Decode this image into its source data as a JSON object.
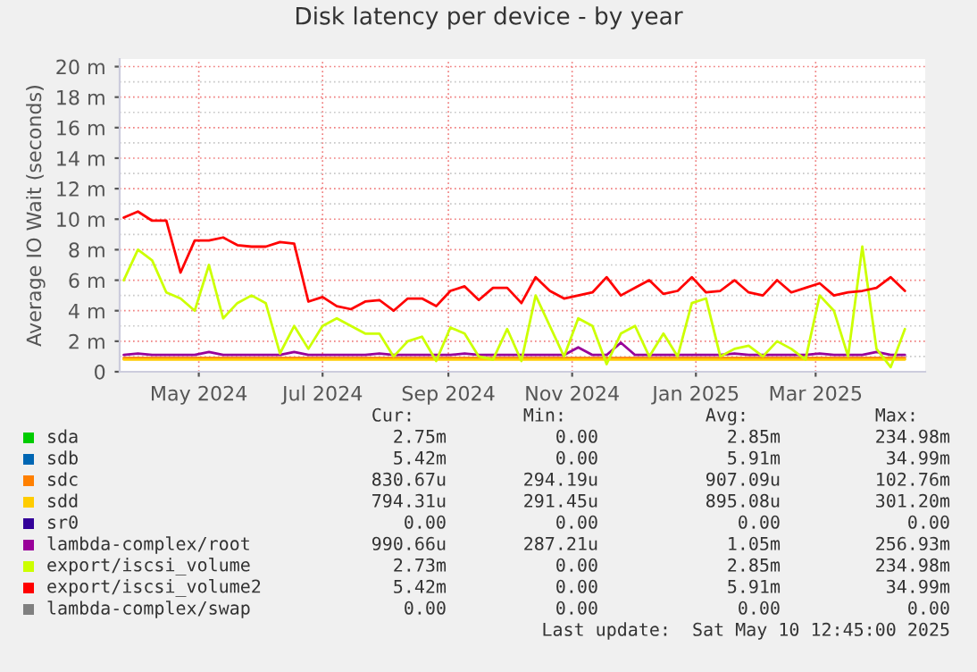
{
  "chart_data": {
    "type": "line",
    "title": "Disk latency per device - by year",
    "ylabel": "Average IO Wait (seconds)",
    "x": [
      "2024-03-25",
      "2024-04-01",
      "2024-04-08",
      "2024-04-15",
      "2024-04-22",
      "2024-04-29",
      "2024-05-06",
      "2024-05-13",
      "2024-05-20",
      "2024-05-27",
      "2024-06-03",
      "2024-06-10",
      "2024-06-17",
      "2024-06-24",
      "2024-07-01",
      "2024-07-08",
      "2024-07-15",
      "2024-07-22",
      "2024-07-29",
      "2024-08-05",
      "2024-08-12",
      "2024-08-19",
      "2024-08-26",
      "2024-09-02",
      "2024-09-09",
      "2024-09-16",
      "2024-09-23",
      "2024-09-30",
      "2024-10-07",
      "2024-10-14",
      "2024-10-21",
      "2024-10-28",
      "2024-11-04",
      "2024-11-11",
      "2024-11-18",
      "2024-11-25",
      "2024-12-02",
      "2024-12-09",
      "2024-12-16",
      "2024-12-23",
      "2024-12-30",
      "2025-01-06",
      "2025-01-13",
      "2025-01-20",
      "2025-01-27",
      "2025-02-03",
      "2025-02-10",
      "2025-02-17",
      "2025-02-24",
      "2025-03-03",
      "2025-03-10",
      "2025-03-17",
      "2025-03-24",
      "2025-03-31",
      "2025-04-07",
      "2025-04-14"
    ],
    "xlim": [
      "2024-03-23",
      "2025-04-24"
    ],
    "xticks": [
      {
        "value": "2024-05-01",
        "label": "May 2024"
      },
      {
        "value": "2024-07-01",
        "label": "Jul 2024"
      },
      {
        "value": "2024-09-01",
        "label": "Sep 2024"
      },
      {
        "value": "2024-11-01",
        "label": "Nov 2024"
      },
      {
        "value": "2025-01-01",
        "label": "Jan 2025"
      },
      {
        "value": "2025-03-01",
        "label": "Mar 2025"
      }
    ],
    "ylim": [
      0,
      20.5
    ],
    "yticks": [
      0,
      {
        "value": 2,
        "label": "2 m"
      },
      {
        "value": 4,
        "label": "4 m"
      },
      {
        "value": 6,
        "label": "6 m"
      },
      {
        "value": 8,
        "label": "8 m"
      },
      {
        "value": 10,
        "label": "10 m"
      },
      {
        "value": 12,
        "label": "12 m"
      },
      {
        "value": 14,
        "label": "14 m"
      },
      {
        "value": 16,
        "label": "16 m"
      },
      {
        "value": 18,
        "label": "18 m"
      },
      {
        "value": 20,
        "label": "20 m"
      }
    ],
    "grid": true,
    "legend": "bottom",
    "series": [
      {
        "name": "sda",
        "color": "#00cc00",
        "values": [
          null,
          null,
          null,
          null,
          null,
          null,
          null,
          null,
          null,
          null,
          null,
          null,
          null,
          null,
          null,
          null,
          null,
          null,
          null,
          null,
          null,
          null,
          null,
          null,
          null,
          null,
          null,
          null,
          null,
          null,
          null,
          null,
          null,
          null,
          null,
          null,
          null,
          null,
          null,
          null,
          null,
          null,
          null,
          null,
          null,
          null,
          null,
          null,
          null,
          null,
          null,
          null,
          null,
          null,
          null,
          null
        ]
      },
      {
        "name": "sdb",
        "color": "#0066b3",
        "values": [
          null,
          null,
          null,
          null,
          null,
          null,
          null,
          null,
          null,
          null,
          null,
          null,
          null,
          null,
          null,
          null,
          null,
          null,
          null,
          null,
          null,
          null,
          null,
          null,
          null,
          null,
          null,
          null,
          null,
          null,
          null,
          null,
          null,
          null,
          null,
          null,
          null,
          null,
          null,
          null,
          null,
          null,
          null,
          null,
          null,
          null,
          null,
          null,
          null,
          null,
          null,
          null,
          null,
          null,
          null,
          null
        ]
      },
      {
        "name": "sdc",
        "color": "#ff8000",
        "values": [
          0.9,
          0.9,
          0.9,
          0.9,
          0.9,
          0.9,
          0.9,
          0.9,
          0.9,
          0.9,
          0.9,
          0.9,
          0.9,
          0.9,
          0.9,
          0.9,
          0.9,
          0.9,
          0.9,
          0.9,
          0.9,
          0.9,
          0.9,
          0.9,
          0.9,
          0.9,
          0.9,
          0.9,
          0.9,
          0.9,
          0.9,
          0.9,
          0.9,
          0.9,
          0.9,
          0.9,
          0.9,
          0.9,
          0.9,
          0.9,
          0.9,
          0.9,
          0.9,
          0.9,
          0.9,
          0.9,
          0.9,
          0.9,
          0.9,
          0.9,
          0.9,
          0.9,
          0.9,
          0.9,
          0.9,
          0.9
        ]
      },
      {
        "name": "sdd",
        "color": "#ffcc00",
        "values": [
          0.8,
          0.8,
          0.8,
          0.8,
          0.8,
          0.8,
          0.8,
          0.8,
          0.8,
          0.8,
          0.8,
          0.8,
          0.8,
          0.8,
          0.8,
          0.8,
          0.8,
          0.8,
          0.8,
          0.8,
          0.8,
          0.8,
          0.8,
          0.8,
          0.8,
          0.8,
          0.8,
          0.8,
          0.8,
          0.8,
          0.8,
          0.8,
          0.8,
          0.8,
          0.8,
          0.8,
          0.8,
          0.8,
          0.8,
          0.8,
          0.8,
          0.8,
          0.8,
          0.8,
          0.8,
          0.8,
          0.8,
          0.8,
          0.8,
          0.8,
          0.8,
          0.8,
          0.8,
          0.8,
          0.8,
          0.8
        ]
      },
      {
        "name": "sr0",
        "color": "#330099",
        "values": [
          null,
          null,
          null,
          null,
          null,
          null,
          null,
          null,
          null,
          null,
          null,
          null,
          null,
          null,
          null,
          null,
          null,
          null,
          null,
          null,
          null,
          null,
          null,
          null,
          null,
          null,
          null,
          null,
          null,
          null,
          null,
          null,
          null,
          null,
          null,
          null,
          null,
          null,
          null,
          null,
          null,
          null,
          null,
          null,
          null,
          null,
          null,
          null,
          null,
          null,
          null,
          null,
          null,
          null,
          null,
          null
        ]
      },
      {
        "name": "lambda-complex/root",
        "color": "#990099",
        "values": [
          1.1,
          1.2,
          1.1,
          1.1,
          1.1,
          1.1,
          1.3,
          1.1,
          1.1,
          1.1,
          1.1,
          1.1,
          1.3,
          1.1,
          1.1,
          1.1,
          1.1,
          1.1,
          1.2,
          1.1,
          1.1,
          1.1,
          1.1,
          1.1,
          1.2,
          1.1,
          1.1,
          1.1,
          1.1,
          1.1,
          1.1,
          1.1,
          1.6,
          1.1,
          1.1,
          1.9,
          1.1,
          1.1,
          1.1,
          1.1,
          1.1,
          1.1,
          1.1,
          1.2,
          1.1,
          1.1,
          1.1,
          1.1,
          1.1,
          1.2,
          1.1,
          1.1,
          1.1,
          1.3,
          1.1,
          1.1
        ]
      },
      {
        "name": "export/iscsi_volume",
        "color": "#ccff00",
        "values": [
          6.0,
          8.0,
          7.3,
          5.2,
          4.8,
          4.0,
          7.0,
          3.5,
          4.5,
          5.0,
          4.5,
          1.2,
          3.0,
          1.5,
          3.0,
          3.5,
          3.0,
          2.5,
          2.5,
          1.0,
          2.0,
          2.3,
          0.7,
          2.9,
          2.5,
          1.0,
          0.8,
          2.8,
          0.7,
          5.0,
          3.0,
          1.0,
          3.5,
          3.0,
          0.5,
          2.5,
          3.0,
          1.0,
          2.5,
          1.0,
          4.5,
          4.8,
          1.0,
          1.5,
          1.7,
          1.0,
          2.0,
          1.5,
          0.8,
          5.0,
          4.0,
          1.0,
          8.2,
          1.5,
          0.3,
          2.8
        ]
      },
      {
        "name": "export/iscsi_volume2",
        "color": "#ff0000",
        "values": [
          10.1,
          10.5,
          9.9,
          9.9,
          6.5,
          8.6,
          8.6,
          8.8,
          8.3,
          8.2,
          8.2,
          8.5,
          8.4,
          4.6,
          4.9,
          4.3,
          4.1,
          4.6,
          4.7,
          4.0,
          4.8,
          4.8,
          4.3,
          5.3,
          5.6,
          4.7,
          5.5,
          5.5,
          4.5,
          6.2,
          5.3,
          4.8,
          5.0,
          5.2,
          6.2,
          5.0,
          5.5,
          6.0,
          5.1,
          5.3,
          6.2,
          5.2,
          5.3,
          6.0,
          5.2,
          5.0,
          6.0,
          5.2,
          5.5,
          5.8,
          5.0,
          5.2,
          5.3,
          5.5,
          6.2,
          5.3
        ]
      },
      {
        "name": "lambda-complex/swap",
        "color": "#808080",
        "values": [
          null,
          null,
          null,
          null,
          null,
          null,
          null,
          null,
          null,
          null,
          null,
          null,
          null,
          null,
          null,
          null,
          null,
          null,
          null,
          null,
          null,
          null,
          null,
          null,
          null,
          null,
          null,
          null,
          null,
          null,
          null,
          null,
          null,
          null,
          null,
          null,
          null,
          null,
          null,
          null,
          null,
          null,
          null,
          null,
          null,
          null,
          null,
          null,
          null,
          null,
          null,
          null,
          null,
          null,
          null,
          null
        ]
      }
    ],
    "annotations": [
      "Cur:",
      "Min:",
      "Avg:",
      "Max:",
      "2.75m",
      "0.00",
      "2.85m",
      "234.98m",
      "5.42m",
      "0.00",
      "5.91m",
      "34.99m",
      "830.67u",
      "294.19u",
      "907.09u",
      "102.76m",
      "794.31u",
      "291.45u",
      "895.08u",
      "301.20m",
      "0.00",
      "0.00",
      "0.00",
      "0.00",
      "990.66u",
      "287.21u",
      "1.05m",
      "256.93m",
      "2.73m",
      "0.00",
      "2.85m",
      "234.98m",
      "5.42m",
      "0.00",
      "5.91m",
      "34.99m",
      "0.00",
      "0.00",
      "0.00",
      "0.00",
      "Last update:  Sat May 10 12:45:00 2025"
    ]
  }
}
